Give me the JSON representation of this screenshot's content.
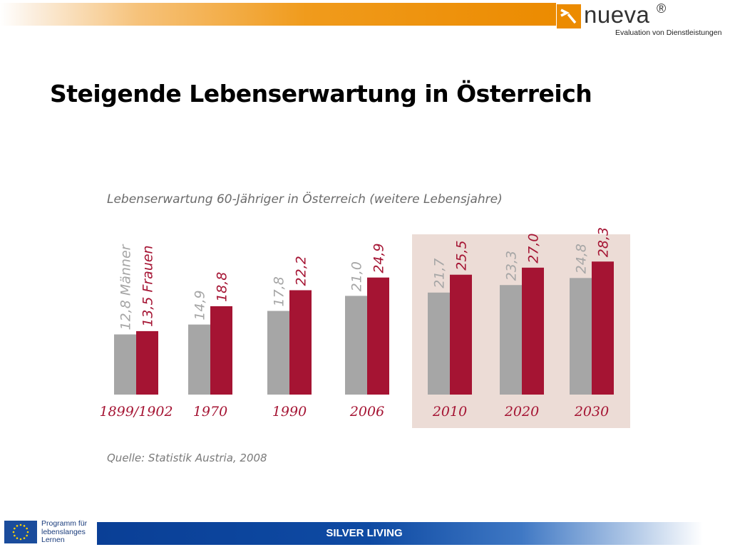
{
  "header": {
    "logo_name": "nueva",
    "logo_reg": "®",
    "logo_tagline": "Evaluation von Dienstleistungen"
  },
  "slide": {
    "title": "Steigende Lebenserwartung in Österreich"
  },
  "chart_data": {
    "type": "bar",
    "title": "Lebenserwartung 60-Jähriger in Österreich (weitere Lebensjahre)",
    "categories": [
      "1899/1902",
      "1970",
      "1990",
      "2006",
      "2010",
      "2020",
      "2030"
    ],
    "series": [
      {
        "name": "Männer",
        "values": [
          12.8,
          14.9,
          17.8,
          21.0,
          21.7,
          23.3,
          24.8
        ],
        "labels": [
          "12,8",
          "14,9",
          "17,8",
          "21,0",
          "21,7",
          "23,3",
          "24,8"
        ],
        "color": "#a6a6a6"
      },
      {
        "name": "Frauen",
        "values": [
          13.5,
          18.8,
          22.2,
          24.9,
          25.5,
          27.0,
          28.3
        ],
        "labels": [
          "13,5",
          "18,8",
          "22,2",
          "24,9",
          "25,5",
          "27,0",
          "28,3"
        ],
        "color": "#a51433"
      }
    ],
    "highlighted_categories": [
      "2010",
      "2020",
      "2030"
    ],
    "highlight_color": "#ecdcd6",
    "label_color": "#a51433",
    "source": "Quelle: Statistik Austria, 2008"
  },
  "footer": {
    "program_lines": [
      "Programm für",
      "lebenslanges",
      "Lernen"
    ],
    "label": "SILVER LIVING"
  }
}
